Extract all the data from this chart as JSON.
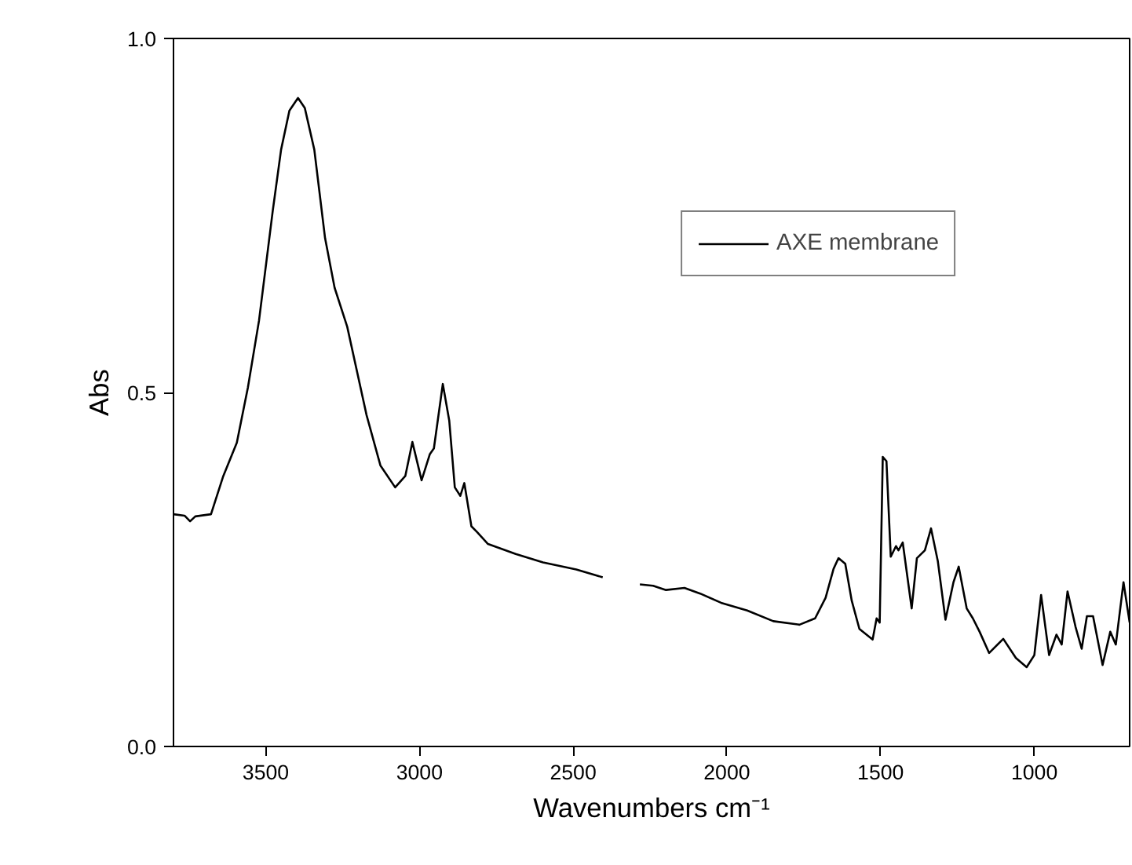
{
  "chart_data": {
    "type": "line",
    "xlabel": "Wavenumbers cm⁻¹",
    "ylabel": "Abs",
    "xlim": [
      3800,
      690
    ],
    "ylim": [
      0,
      1
    ],
    "xticks": [
      3500,
      3000,
      2500,
      2000,
      1500,
      1000
    ],
    "yticks": [
      {
        "value": 0,
        "label": "0.0"
      },
      {
        "value": 0.5,
        "label": "0.5"
      },
      {
        "value": 1,
        "label": "1.0"
      }
    ],
    "grid": false,
    "legend": "top right",
    "marker": "none",
    "line_style": "solid",
    "series": [
      {
        "name": "AXE membrane",
        "color": "#000000",
        "x": [
          3800,
          3764,
          3746,
          3729,
          3678,
          3638,
          3594,
          3558,
          3522,
          3477,
          3450,
          3423,
          3395,
          3373,
          3342,
          3307,
          3276,
          3235,
          3172,
          3127,
          3079,
          3046,
          3023,
          2993,
          2966,
          2953,
          2924,
          2903,
          2885,
          2867,
          2854,
          2831,
          2813,
          2777,
          2687,
          2598,
          2490,
          2404,
          2340,
          2283,
          2240,
          2198,
          2138,
          2087,
          2019,
          1934,
          1849,
          1764,
          1713,
          1679,
          1653,
          1637,
          1615,
          1594,
          1569,
          1526,
          1513,
          1503,
          1493,
          1481,
          1467,
          1450,
          1442,
          1428,
          1399,
          1382,
          1356,
          1336,
          1314,
          1289,
          1263,
          1246,
          1220,
          1200,
          1178,
          1147,
          1101,
          1060,
          1025,
          1000,
          978,
          952,
          928,
          911,
          892,
          866,
          846,
          829,
          809,
          778,
          753,
          735,
          710,
          690
        ],
        "values": [
          0.328,
          0.326,
          0.318,
          0.325,
          0.328,
          0.382,
          0.429,
          0.507,
          0.601,
          0.757,
          0.843,
          0.898,
          0.916,
          0.902,
          0.843,
          0.718,
          0.648,
          0.593,
          0.468,
          0.397,
          0.366,
          0.382,
          0.43,
          0.376,
          0.413,
          0.421,
          0.512,
          0.46,
          0.366,
          0.354,
          0.372,
          0.311,
          0.303,
          0.286,
          0.272,
          0.26,
          0.25,
          0.239,
          null,
          0.229,
          0.227,
          0.221,
          0.224,
          0.216,
          0.203,
          0.192,
          0.177,
          0.172,
          0.181,
          0.21,
          0.251,
          0.266,
          0.258,
          0.206,
          0.166,
          0.151,
          0.181,
          0.175,
          0.409,
          0.403,
          0.268,
          0.283,
          0.277,
          0.288,
          0.195,
          0.266,
          0.277,
          0.308,
          0.262,
          0.179,
          0.232,
          0.254,
          0.195,
          0.181,
          0.162,
          0.132,
          0.152,
          0.125,
          0.112,
          0.129,
          0.214,
          0.129,
          0.158,
          0.144,
          0.219,
          0.169,
          0.138,
          0.184,
          0.184,
          0.115,
          0.162,
          0.144,
          0.232,
          0.175
        ]
      }
    ]
  }
}
